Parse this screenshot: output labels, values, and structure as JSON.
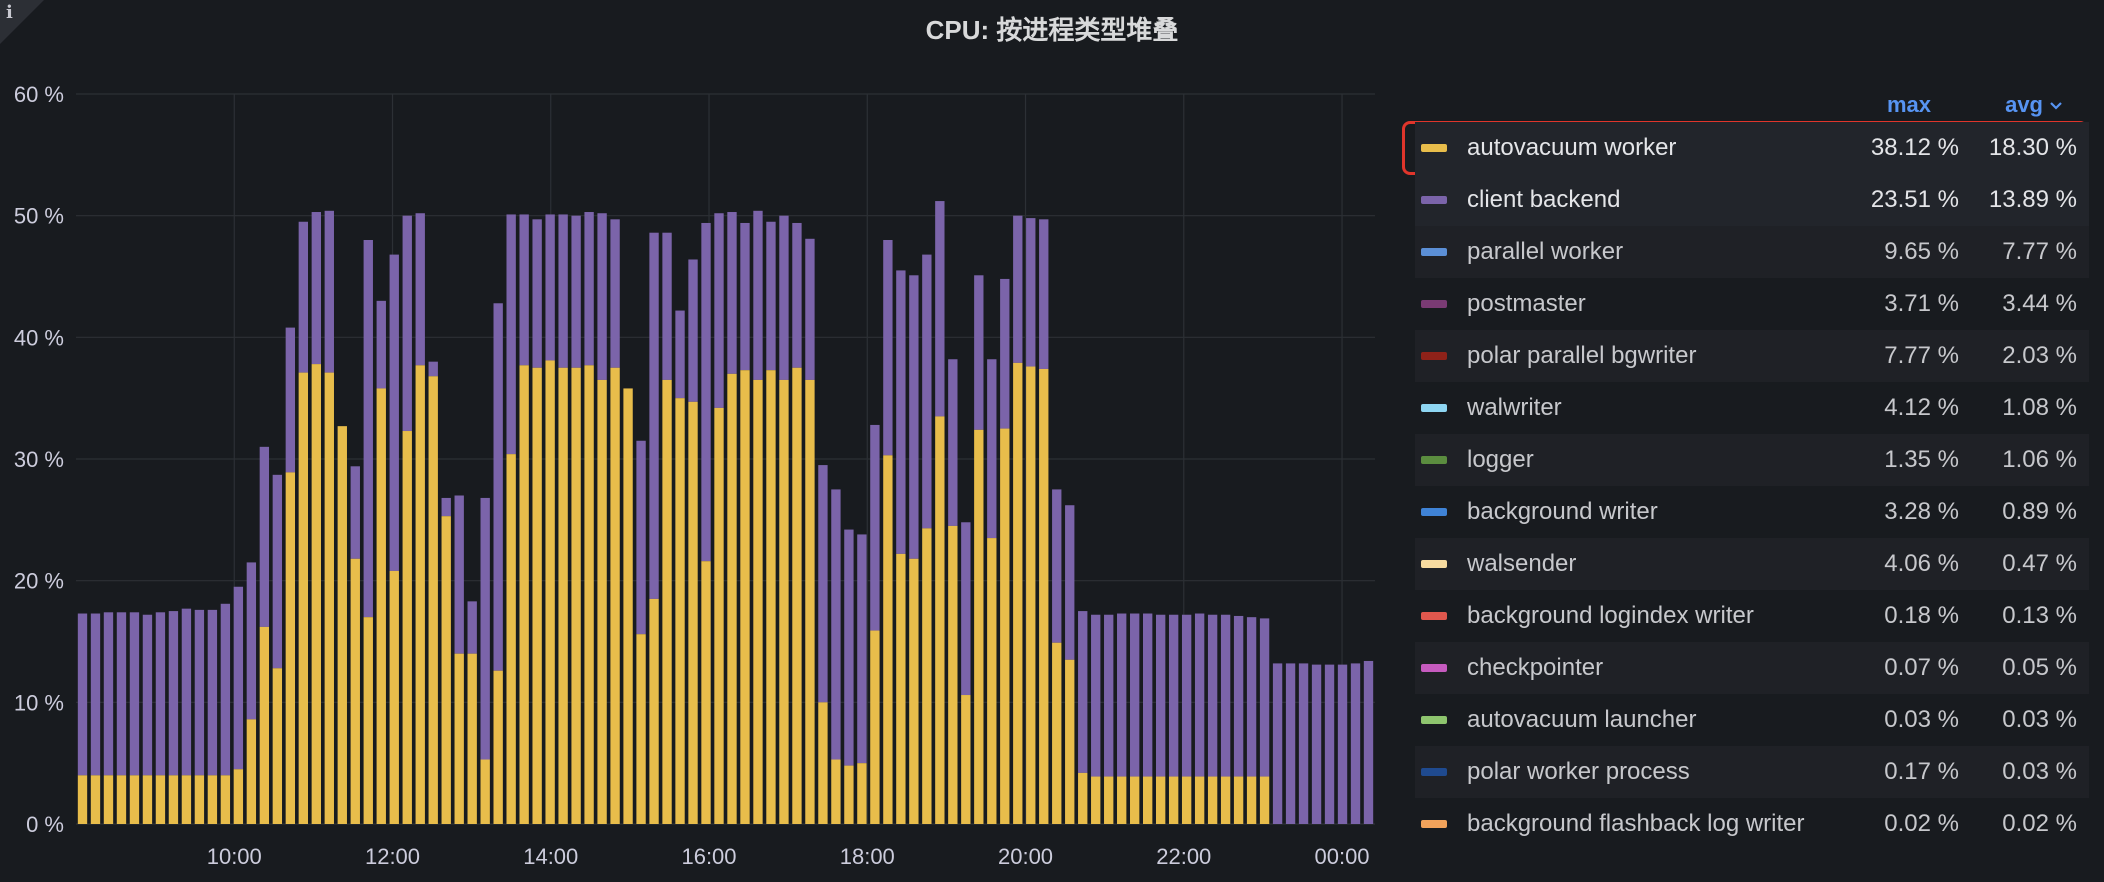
{
  "title": "CPU: 按进程类型堆叠",
  "corner_icon": "info-icon",
  "chart_data": {
    "type": "bar",
    "stacked": true,
    "title": "CPU: 按进程类型堆叠",
    "ylim": [
      0,
      60
    ],
    "yticks": [
      "0 %",
      "10 %",
      "20 %",
      "30 %",
      "40 %",
      "50 %",
      "60 %"
    ],
    "xticks": [
      "10:00",
      "12:00",
      "14:00",
      "16:00",
      "18:00",
      "20:00",
      "22:00",
      "00:00"
    ],
    "grid": true,
    "legend_placement": "right",
    "x_start": "08:00",
    "x_end": "00:25",
    "interval_minutes": 10,
    "series": [
      {
        "name": "autovacuum worker",
        "color": "#e8bd4b",
        "values": [
          4,
          4,
          4,
          4,
          4,
          4,
          4,
          4,
          4,
          4,
          4,
          4,
          4.5,
          8.6,
          16.2,
          12.8,
          28.9,
          37.1,
          37.8,
          37.1,
          32.7,
          21.8,
          17,
          35.8,
          20.8,
          32.3,
          37.7,
          36.8,
          25.3,
          14,
          14,
          5.3,
          12.6,
          30.4,
          37.7,
          37.5,
          38.1,
          37.5,
          37.5,
          37.7,
          36.5,
          37.5,
          35.8,
          15.6,
          18.5,
          36.5,
          35,
          34.7,
          21.6,
          34.2,
          37,
          37.3,
          36.5,
          37.3,
          36.5,
          37.5,
          36.5,
          10,
          5.3,
          4.8,
          5,
          15.9,
          30.3,
          22.2,
          21.8,
          24.3,
          33.5,
          24.5,
          10.6,
          32.4,
          23.5,
          32.5,
          37.9,
          37.6,
          37.4,
          14.9,
          13.5,
          4.2,
          3.9,
          3.9,
          3.9,
          3.9,
          3.9,
          3.9,
          3.9,
          3.9,
          3.9,
          3.9,
          3.9,
          3.9,
          3.9,
          3.9,
          0,
          0,
          0,
          0,
          0,
          0,
          0,
          0
        ],
        "total": [
          17.3,
          17.3,
          17.4,
          17.4,
          17.4,
          17.2,
          17.4,
          17.5,
          17.7,
          17.6,
          17.6,
          18.1,
          19.5,
          21.5,
          31,
          28.7,
          40.8,
          49.5,
          50.3,
          50.4,
          27.1,
          29.4,
          48,
          43,
          46.8,
          50,
          50.2,
          38,
          26.8,
          27,
          18.3,
          26.8,
          42.8,
          50.1,
          50.1,
          49.7,
          50.1,
          50.1,
          50,
          50.3,
          50.2,
          49.7,
          30.3,
          31.5,
          48.6,
          48.6,
          42.2,
          46.4,
          49.4,
          50.2,
          50.3,
          49.4,
          50.4,
          49.5,
          50,
          49.4,
          48.1,
          29.5,
          27.5,
          24.2,
          23.8,
          32.8,
          48,
          45.5,
          45.1,
          46.8,
          51.2,
          38.2,
          24.8,
          45.1,
          38.2,
          44.8,
          50,
          49.8,
          49.7,
          27.5,
          26.2,
          17.5,
          17.2,
          17.2,
          17.3,
          17.3,
          17.3,
          17.2,
          17.2,
          17.2,
          17.3,
          17.2,
          17.2,
          17.1,
          17,
          16.9,
          13.2,
          13.2,
          13.2,
          13.1,
          13.1,
          13.1,
          13.2,
          13.4
        ]
      },
      {
        "name": "client backend",
        "color": "#7b64aa"
      }
    ]
  },
  "legend": {
    "headers": {
      "max": "max",
      "avg": "avg"
    },
    "sort_icon": "chevron-down-icon",
    "rows": [
      {
        "name": "autovacuum worker",
        "color": "#e8bd4b",
        "max": "38.12 %",
        "avg": "18.30 %"
      },
      {
        "name": "client backend",
        "color": "#7b64aa",
        "max": "23.51 %",
        "avg": "13.89 %"
      },
      {
        "name": "parallel worker",
        "color": "#5b8fd6",
        "max": "9.65 %",
        "avg": "7.77 %"
      },
      {
        "name": "postmaster",
        "color": "#7a3b74",
        "max": "3.71 %",
        "avg": "3.44 %"
      },
      {
        "name": "polar parallel bgwriter",
        "color": "#8f2219",
        "max": "7.77 %",
        "avg": "2.03 %"
      },
      {
        "name": "walwriter",
        "color": "#8ed6f2",
        "max": "4.12 %",
        "avg": "1.08 %"
      },
      {
        "name": "logger",
        "color": "#5b8d3f",
        "max": "1.35 %",
        "avg": "1.06 %"
      },
      {
        "name": "background writer",
        "color": "#3f83d6",
        "max": "3.28 %",
        "avg": "0.89 %"
      },
      {
        "name": "walsender",
        "color": "#f7dba0",
        "max": "4.06 %",
        "avg": "0.47 %"
      },
      {
        "name": "background logindex writer",
        "color": "#e0574d",
        "max": "0.18 %",
        "avg": "0.13 %"
      },
      {
        "name": "checkpointer",
        "color": "#c65bbf",
        "max": "0.07 %",
        "avg": "0.05 %"
      },
      {
        "name": "autovacuum launcher",
        "color": "#8ec56e",
        "max": "0.03 %",
        "avg": "0.03 %"
      },
      {
        "name": "polar worker process",
        "color": "#1f4a8f",
        "max": "0.17 %",
        "avg": "0.03 %"
      },
      {
        "name": "background flashback log writer",
        "color": "#f2a35b",
        "max": "0.02 %",
        "avg": "0.02 %"
      }
    ]
  }
}
